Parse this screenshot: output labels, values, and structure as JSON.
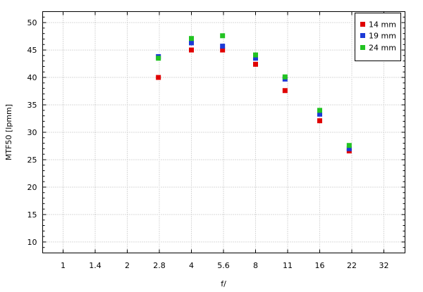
{
  "chart_data": {
    "type": "scatter",
    "xlabel": "f/",
    "ylabel": "MTF50 [lpmm]",
    "x_scale": "log",
    "x_ticks": [
      "1",
      "1.4",
      "2",
      "2.8",
      "4",
      "5.6",
      "8",
      "11",
      "16",
      "22",
      "32"
    ],
    "ylim": [
      8,
      52
    ],
    "y_ticks": [
      10,
      15,
      20,
      25,
      30,
      35,
      40,
      45,
      50
    ],
    "grid": true,
    "legend_position": "top-right",
    "series": [
      {
        "name": "14 mm",
        "color": "#e00000",
        "x": [
          2.8,
          4,
          5.6,
          8,
          11,
          16,
          22
        ],
        "y": [
          40.0,
          45.0,
          45.0,
          42.4,
          37.6,
          32.1,
          26.6
        ]
      },
      {
        "name": "19 mm",
        "color": "#1c3ad6",
        "x": [
          2.8,
          4,
          5.6,
          8,
          11,
          16,
          22
        ],
        "y": [
          43.8,
          46.3,
          45.7,
          43.5,
          39.7,
          33.3,
          27.0
        ]
      },
      {
        "name": "24 mm",
        "color": "#22c322",
        "x": [
          2.8,
          4,
          5.6,
          8,
          11,
          16,
          22
        ],
        "y": [
          43.5,
          47.1,
          47.6,
          44.1,
          40.1,
          34.0,
          27.6
        ]
      }
    ]
  }
}
